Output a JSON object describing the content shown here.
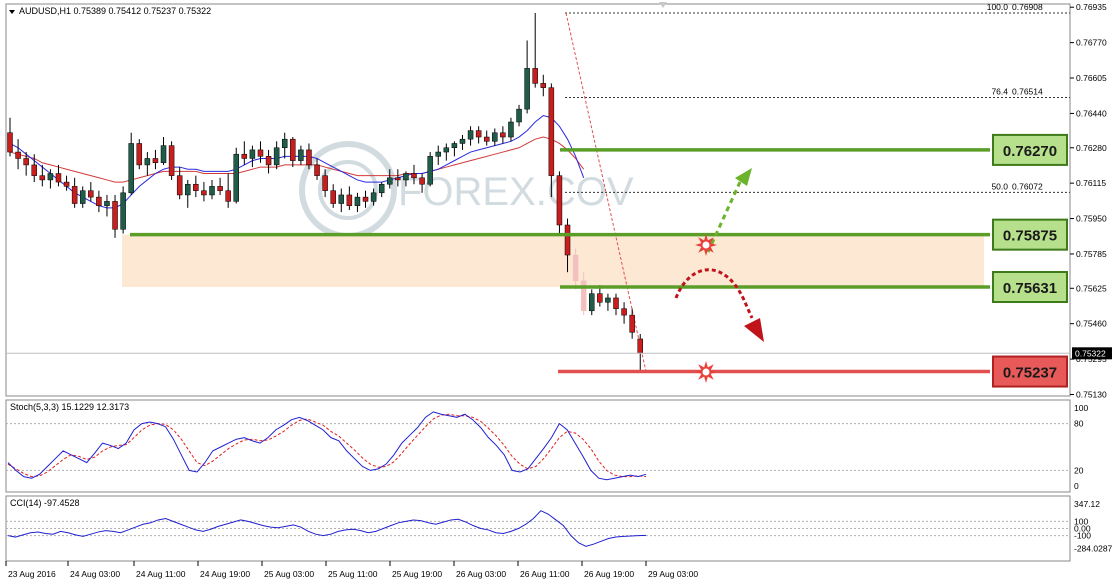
{
  "chart_data": [
    {
      "type": "candlestick",
      "title": "AUDUSD,H1  0.75389 0.75412 0.75237 0.75322",
      "ylim": [
        0.75123,
        0.7695
      ],
      "y_ticks": [
        "0.76935",
        "0.76770",
        "0.76605",
        "0.76440",
        "0.76280",
        "0.76115",
        "0.75950",
        "0.75785",
        "0.75625",
        "0.75460",
        "0.75295",
        "0.75130"
      ],
      "y_tick_values": [
        0.76935,
        0.7677,
        0.76605,
        0.7644,
        0.7628,
        0.76115,
        0.7595,
        0.75785,
        0.75625,
        0.7546,
        0.75295,
        0.7513
      ],
      "current_price": {
        "label": "0.75322",
        "value": 0.75322
      },
      "candles": [
        {
          "o": 0.7635,
          "h": 0.7642,
          "l": 0.7624,
          "c": 0.7626
        },
        {
          "o": 0.7626,
          "h": 0.7632,
          "l": 0.7618,
          "c": 0.7623
        },
        {
          "o": 0.7623,
          "h": 0.7626,
          "l": 0.7615,
          "c": 0.762
        },
        {
          "o": 0.762,
          "h": 0.7625,
          "l": 0.7612,
          "c": 0.7615
        },
        {
          "o": 0.7615,
          "h": 0.762,
          "l": 0.761,
          "c": 0.7613
        },
        {
          "o": 0.7613,
          "h": 0.7618,
          "l": 0.7609,
          "c": 0.7616
        },
        {
          "o": 0.7616,
          "h": 0.762,
          "l": 0.761,
          "c": 0.7612
        },
        {
          "o": 0.7612,
          "h": 0.7615,
          "l": 0.7608,
          "c": 0.761
        },
        {
          "o": 0.761,
          "h": 0.7614,
          "l": 0.76,
          "c": 0.7602
        },
        {
          "o": 0.7602,
          "h": 0.761,
          "l": 0.76,
          "c": 0.7608
        },
        {
          "o": 0.7608,
          "h": 0.7612,
          "l": 0.7603,
          "c": 0.7605
        },
        {
          "o": 0.7605,
          "h": 0.7608,
          "l": 0.7598,
          "c": 0.7601
        },
        {
          "o": 0.7601,
          "h": 0.7606,
          "l": 0.7596,
          "c": 0.7603
        },
        {
          "o": 0.7603,
          "h": 0.7606,
          "l": 0.7586,
          "c": 0.759
        },
        {
          "o": 0.759,
          "h": 0.761,
          "l": 0.7588,
          "c": 0.7607
        },
        {
          "o": 0.7607,
          "h": 0.7635,
          "l": 0.7606,
          "c": 0.763
        },
        {
          "o": 0.763,
          "h": 0.7632,
          "l": 0.7618,
          "c": 0.762
        },
        {
          "o": 0.762,
          "h": 0.7626,
          "l": 0.7615,
          "c": 0.7623
        },
        {
          "o": 0.7623,
          "h": 0.7627,
          "l": 0.7618,
          "c": 0.7621
        },
        {
          "o": 0.7621,
          "h": 0.7633,
          "l": 0.762,
          "c": 0.7629
        },
        {
          "o": 0.7629,
          "h": 0.7631,
          "l": 0.7613,
          "c": 0.7615
        },
        {
          "o": 0.7615,
          "h": 0.7619,
          "l": 0.7604,
          "c": 0.7606
        },
        {
          "o": 0.7606,
          "h": 0.7613,
          "l": 0.76,
          "c": 0.7611
        },
        {
          "o": 0.7611,
          "h": 0.7615,
          "l": 0.7605,
          "c": 0.7608
        },
        {
          "o": 0.7608,
          "h": 0.7612,
          "l": 0.7603,
          "c": 0.7606
        },
        {
          "o": 0.7606,
          "h": 0.7613,
          "l": 0.7604,
          "c": 0.761
        },
        {
          "o": 0.761,
          "h": 0.7614,
          "l": 0.7606,
          "c": 0.7608
        },
        {
          "o": 0.7608,
          "h": 0.7616,
          "l": 0.76,
          "c": 0.7603
        },
        {
          "o": 0.7603,
          "h": 0.7628,
          "l": 0.7602,
          "c": 0.7625
        },
        {
          "o": 0.7625,
          "h": 0.7631,
          "l": 0.762,
          "c": 0.7623
        },
        {
          "o": 0.7623,
          "h": 0.7629,
          "l": 0.7619,
          "c": 0.7627
        },
        {
          "o": 0.7627,
          "h": 0.7631,
          "l": 0.7621,
          "c": 0.7624
        },
        {
          "o": 0.7624,
          "h": 0.7627,
          "l": 0.7616,
          "c": 0.762
        },
        {
          "o": 0.762,
          "h": 0.7631,
          "l": 0.7618,
          "c": 0.7628
        },
        {
          "o": 0.7628,
          "h": 0.7635,
          "l": 0.7623,
          "c": 0.7632
        },
        {
          "o": 0.7632,
          "h": 0.7633,
          "l": 0.7619,
          "c": 0.7622
        },
        {
          "o": 0.7622,
          "h": 0.7629,
          "l": 0.762,
          "c": 0.7627
        },
        {
          "o": 0.7627,
          "h": 0.763,
          "l": 0.7618,
          "c": 0.762
        },
        {
          "o": 0.762,
          "h": 0.7623,
          "l": 0.7613,
          "c": 0.7615
        },
        {
          "o": 0.7615,
          "h": 0.7618,
          "l": 0.7605,
          "c": 0.7608
        },
        {
          "o": 0.7608,
          "h": 0.7611,
          "l": 0.76,
          "c": 0.7602
        },
        {
          "o": 0.7602,
          "h": 0.7609,
          "l": 0.7598,
          "c": 0.7606
        },
        {
          "o": 0.7606,
          "h": 0.761,
          "l": 0.7599,
          "c": 0.7601
        },
        {
          "o": 0.7601,
          "h": 0.7607,
          "l": 0.7598,
          "c": 0.7605
        },
        {
          "o": 0.7605,
          "h": 0.7608,
          "l": 0.76,
          "c": 0.7603
        },
        {
          "o": 0.7603,
          "h": 0.7609,
          "l": 0.7601,
          "c": 0.7607
        },
        {
          "o": 0.7607,
          "h": 0.7612,
          "l": 0.7605,
          "c": 0.7611
        },
        {
          "o": 0.7611,
          "h": 0.7618,
          "l": 0.7609,
          "c": 0.7614
        },
        {
          "o": 0.7614,
          "h": 0.7618,
          "l": 0.761,
          "c": 0.7613
        },
        {
          "o": 0.7613,
          "h": 0.7617,
          "l": 0.761,
          "c": 0.7616
        },
        {
          "o": 0.7616,
          "h": 0.762,
          "l": 0.7611,
          "c": 0.7614
        },
        {
          "o": 0.7614,
          "h": 0.7616,
          "l": 0.7607,
          "c": 0.7611
        },
        {
          "o": 0.7611,
          "h": 0.7626,
          "l": 0.761,
          "c": 0.7624
        },
        {
          "o": 0.7624,
          "h": 0.7629,
          "l": 0.762,
          "c": 0.7626
        },
        {
          "o": 0.7626,
          "h": 0.763,
          "l": 0.7622,
          "c": 0.7628
        },
        {
          "o": 0.7628,
          "h": 0.7631,
          "l": 0.7624,
          "c": 0.763
        },
        {
          "o": 0.763,
          "h": 0.7634,
          "l": 0.7627,
          "c": 0.7632
        },
        {
          "o": 0.7632,
          "h": 0.7638,
          "l": 0.7629,
          "c": 0.7636
        },
        {
          "o": 0.7636,
          "h": 0.7638,
          "l": 0.763,
          "c": 0.7633
        },
        {
          "o": 0.7633,
          "h": 0.7636,
          "l": 0.7629,
          "c": 0.7631
        },
        {
          "o": 0.7631,
          "h": 0.7637,
          "l": 0.7629,
          "c": 0.7635
        },
        {
          "o": 0.7635,
          "h": 0.7638,
          "l": 0.763,
          "c": 0.7633
        },
        {
          "o": 0.7633,
          "h": 0.7642,
          "l": 0.7631,
          "c": 0.764
        },
        {
          "o": 0.764,
          "h": 0.7648,
          "l": 0.7638,
          "c": 0.7646
        },
        {
          "o": 0.7646,
          "h": 0.7678,
          "l": 0.7644,
          "c": 0.7665
        },
        {
          "o": 0.7665,
          "h": 0.76908,
          "l": 0.7656,
          "c": 0.7658
        },
        {
          "o": 0.7658,
          "h": 0.7662,
          "l": 0.7652,
          "c": 0.7656
        },
        {
          "o": 0.7656,
          "h": 0.7658,
          "l": 0.7605,
          "c": 0.7615
        },
        {
          "o": 0.7615,
          "h": 0.7617,
          "l": 0.7588,
          "c": 0.7592
        },
        {
          "o": 0.7592,
          "h": 0.7595,
          "l": 0.757,
          "c": 0.7578
        },
        {
          "o": 0.7578,
          "h": 0.7581,
          "l": 0.7562,
          "c": 0.7566
        },
        {
          "o": 0.7566,
          "h": 0.757,
          "l": 0.755,
          "c": 0.7552
        },
        {
          "o": 0.7552,
          "h": 0.7562,
          "l": 0.755,
          "c": 0.756
        },
        {
          "o": 0.756,
          "h": 0.7564,
          "l": 0.7554,
          "c": 0.7556
        },
        {
          "o": 0.7556,
          "h": 0.756,
          "l": 0.7552,
          "c": 0.7558
        },
        {
          "o": 0.7558,
          "h": 0.756,
          "l": 0.755,
          "c": 0.7553
        },
        {
          "o": 0.7553,
          "h": 0.7556,
          "l": 0.7546,
          "c": 0.755
        },
        {
          "o": 0.755,
          "h": 0.7553,
          "l": 0.7539,
          "c": 0.7542
        },
        {
          "o": 0.75389,
          "h": 0.75412,
          "l": 0.75237,
          "c": 0.75322
        }
      ],
      "ma_blue": [
        0.763,
        0.7628,
        0.7625,
        0.7622,
        0.7619,
        0.7616,
        0.7613,
        0.761,
        0.7607,
        0.7605,
        0.7603,
        0.7601,
        0.76,
        0.76,
        0.7602,
        0.7606,
        0.761,
        0.7613,
        0.7616,
        0.7618,
        0.7619,
        0.7619,
        0.7618,
        0.7618,
        0.7617,
        0.7617,
        0.7617,
        0.7617,
        0.7618,
        0.762,
        0.7622,
        0.7623,
        0.7623,
        0.7623,
        0.7624,
        0.7624,
        0.7624,
        0.7624,
        0.7623,
        0.7621,
        0.7619,
        0.7617,
        0.7615,
        0.7613,
        0.7612,
        0.7612,
        0.7612,
        0.7613,
        0.7614,
        0.7615,
        0.7616,
        0.7616,
        0.7617,
        0.7618,
        0.762,
        0.7622,
        0.7624,
        0.7626,
        0.7627,
        0.7628,
        0.7629,
        0.763,
        0.7631,
        0.7633,
        0.7636,
        0.764,
        0.7643,
        0.7642,
        0.7638,
        0.7632,
        0.7624,
        0.7614
      ],
      "ma_red": [
        0.7626,
        0.7625,
        0.7624,
        0.7623,
        0.7621,
        0.762,
        0.7619,
        0.7618,
        0.7617,
        0.7616,
        0.7615,
        0.7614,
        0.7613,
        0.7612,
        0.7612,
        0.7613,
        0.7614,
        0.7615,
        0.7616,
        0.7617,
        0.7617,
        0.7617,
        0.7617,
        0.7617,
        0.7616,
        0.7616,
        0.7616,
        0.7616,
        0.7616,
        0.7617,
        0.7618,
        0.7619,
        0.7619,
        0.7619,
        0.762,
        0.762,
        0.762,
        0.762,
        0.762,
        0.7619,
        0.7618,
        0.7617,
        0.7616,
        0.7615,
        0.7615,
        0.7615,
        0.7615,
        0.7615,
        0.7615,
        0.7616,
        0.7616,
        0.7616,
        0.7617,
        0.7618,
        0.7619,
        0.762,
        0.7621,
        0.7622,
        0.7623,
        0.7624,
        0.7625,
        0.7626,
        0.7627,
        0.7628,
        0.763,
        0.7632,
        0.7633,
        0.7632,
        0.763,
        0.7627,
        0.7623,
        0.7618
      ],
      "fibonacci": [
        {
          "level": "100.0",
          "value": 0.76908
        },
        {
          "level": "76.4",
          "value": 0.76514
        },
        {
          "level": "50.0",
          "value": 0.76072
        }
      ],
      "fib_labels": [
        "100.0",
        "0.76908",
        "76.4",
        "0.76514",
        "50.0",
        "0.76072"
      ],
      "levels": [
        {
          "label": "0.76270",
          "value": 0.7627,
          "color": "#5a9e28"
        },
        {
          "label": "0.75875",
          "value": 0.75875,
          "color": "#5a9e28"
        },
        {
          "label": "0.75631",
          "value": 0.75631,
          "color": "#5a9e28"
        },
        {
          "label": "0.75237",
          "value": 0.75237,
          "color": "#e05050"
        }
      ],
      "zone": {
        "from": 0.75631,
        "to": 0.75875,
        "color": "#fde8d4"
      },
      "watermark": "FOREX.COV"
    },
    {
      "type": "line",
      "title": "Stoch(5,3,3) 15.1229 12.3173",
      "ylim": [
        0,
        100
      ],
      "y_ticks": [
        "100",
        "80",
        "20",
        "0"
      ],
      "y_tick_values": [
        100,
        80,
        20,
        0
      ],
      "series": [
        {
          "values": [
            30,
            20,
            12,
            10,
            15,
            25,
            35,
            45,
            40,
            35,
            30,
            42,
            55,
            52,
            48,
            55,
            72,
            80,
            82,
            80,
            76,
            60,
            40,
            20,
            18,
            30,
            45,
            50,
            55,
            60,
            62,
            58,
            55,
            62,
            72,
            78,
            85,
            88,
            84,
            78,
            72,
            62,
            58,
            45,
            35,
            25,
            20,
            22,
            28,
            40,
            55,
            65,
            75,
            88,
            95,
            92,
            90,
            88,
            92,
            85,
            75,
            62,
            52,
            40,
            20,
            18,
            22,
            35,
            48,
            62,
            80,
            72,
            55,
            38,
            20,
            10,
            8,
            10,
            12,
            14,
            12,
            15
          ]
        },
        {
          "values": [
            28,
            22,
            16,
            12,
            13,
            18,
            26,
            34,
            40,
            38,
            34,
            37,
            45,
            50,
            52,
            53,
            62,
            72,
            78,
            80,
            79,
            72,
            60,
            45,
            30,
            26,
            32,
            40,
            48,
            54,
            59,
            60,
            58,
            59,
            64,
            70,
            78,
            84,
            86,
            82,
            78,
            70,
            64,
            55,
            46,
            36,
            28,
            24,
            25,
            31,
            42,
            54,
            65,
            76,
            86,
            91,
            92,
            90,
            90,
            88,
            83,
            74,
            64,
            52,
            38,
            28,
            22,
            25,
            35,
            48,
            62,
            70,
            68,
            60,
            48,
            32,
            20,
            14,
            12,
            12,
            13,
            12
          ]
        }
      ]
    },
    {
      "type": "line",
      "title": "CCI(14) -97.4528",
      "ylim": [
        -400,
        400
      ],
      "y_ticks": [
        "347.12",
        "100",
        "0.00",
        "-100",
        "-284.0287"
      ],
      "y_tick_values": [
        347.12,
        100,
        0,
        -100,
        -284.0287
      ],
      "series": [
        {
          "values": [
            -100,
            -120,
            -90,
            -60,
            -50,
            -70,
            -80,
            -40,
            -60,
            -90,
            -110,
            -80,
            -50,
            -30,
            -40,
            -60,
            -20,
            20,
            60,
            80,
            120,
            140,
            100,
            60,
            20,
            -20,
            -40,
            -10,
            30,
            60,
            90,
            120,
            100,
            70,
            40,
            20,
            10,
            30,
            50,
            20,
            -40,
            -80,
            -100,
            -80,
            -40,
            -20,
            -10,
            -30,
            -60,
            -40,
            0,
            40,
            80,
            100,
            120,
            110,
            80,
            60,
            90,
            120,
            130,
            90,
            40,
            0,
            -20,
            -60,
            -70,
            -40,
            0,
            60,
            140,
            250,
            200,
            120,
            40,
            -100,
            -200,
            -250,
            -220,
            -180,
            -140,
            -120,
            -110,
            -105,
            -100,
            -97
          ]
        }
      ]
    }
  ],
  "x_axis_labels": [
    "23 Aug 2016",
    "24 Aug 03:00",
    "24 Aug 11:00",
    "24 Aug 19:00",
    "25 Aug 03:00",
    "25 Aug 11:00",
    "25 Aug 19:00",
    "26 Aug 03:00",
    "26 Aug 11:00",
    "26 Aug 19:00",
    "29 Aug 03:00"
  ],
  "colors": {
    "bull": "#1f5c4a",
    "bear": "#c81e1e",
    "ghost": "#f3c0c0"
  }
}
